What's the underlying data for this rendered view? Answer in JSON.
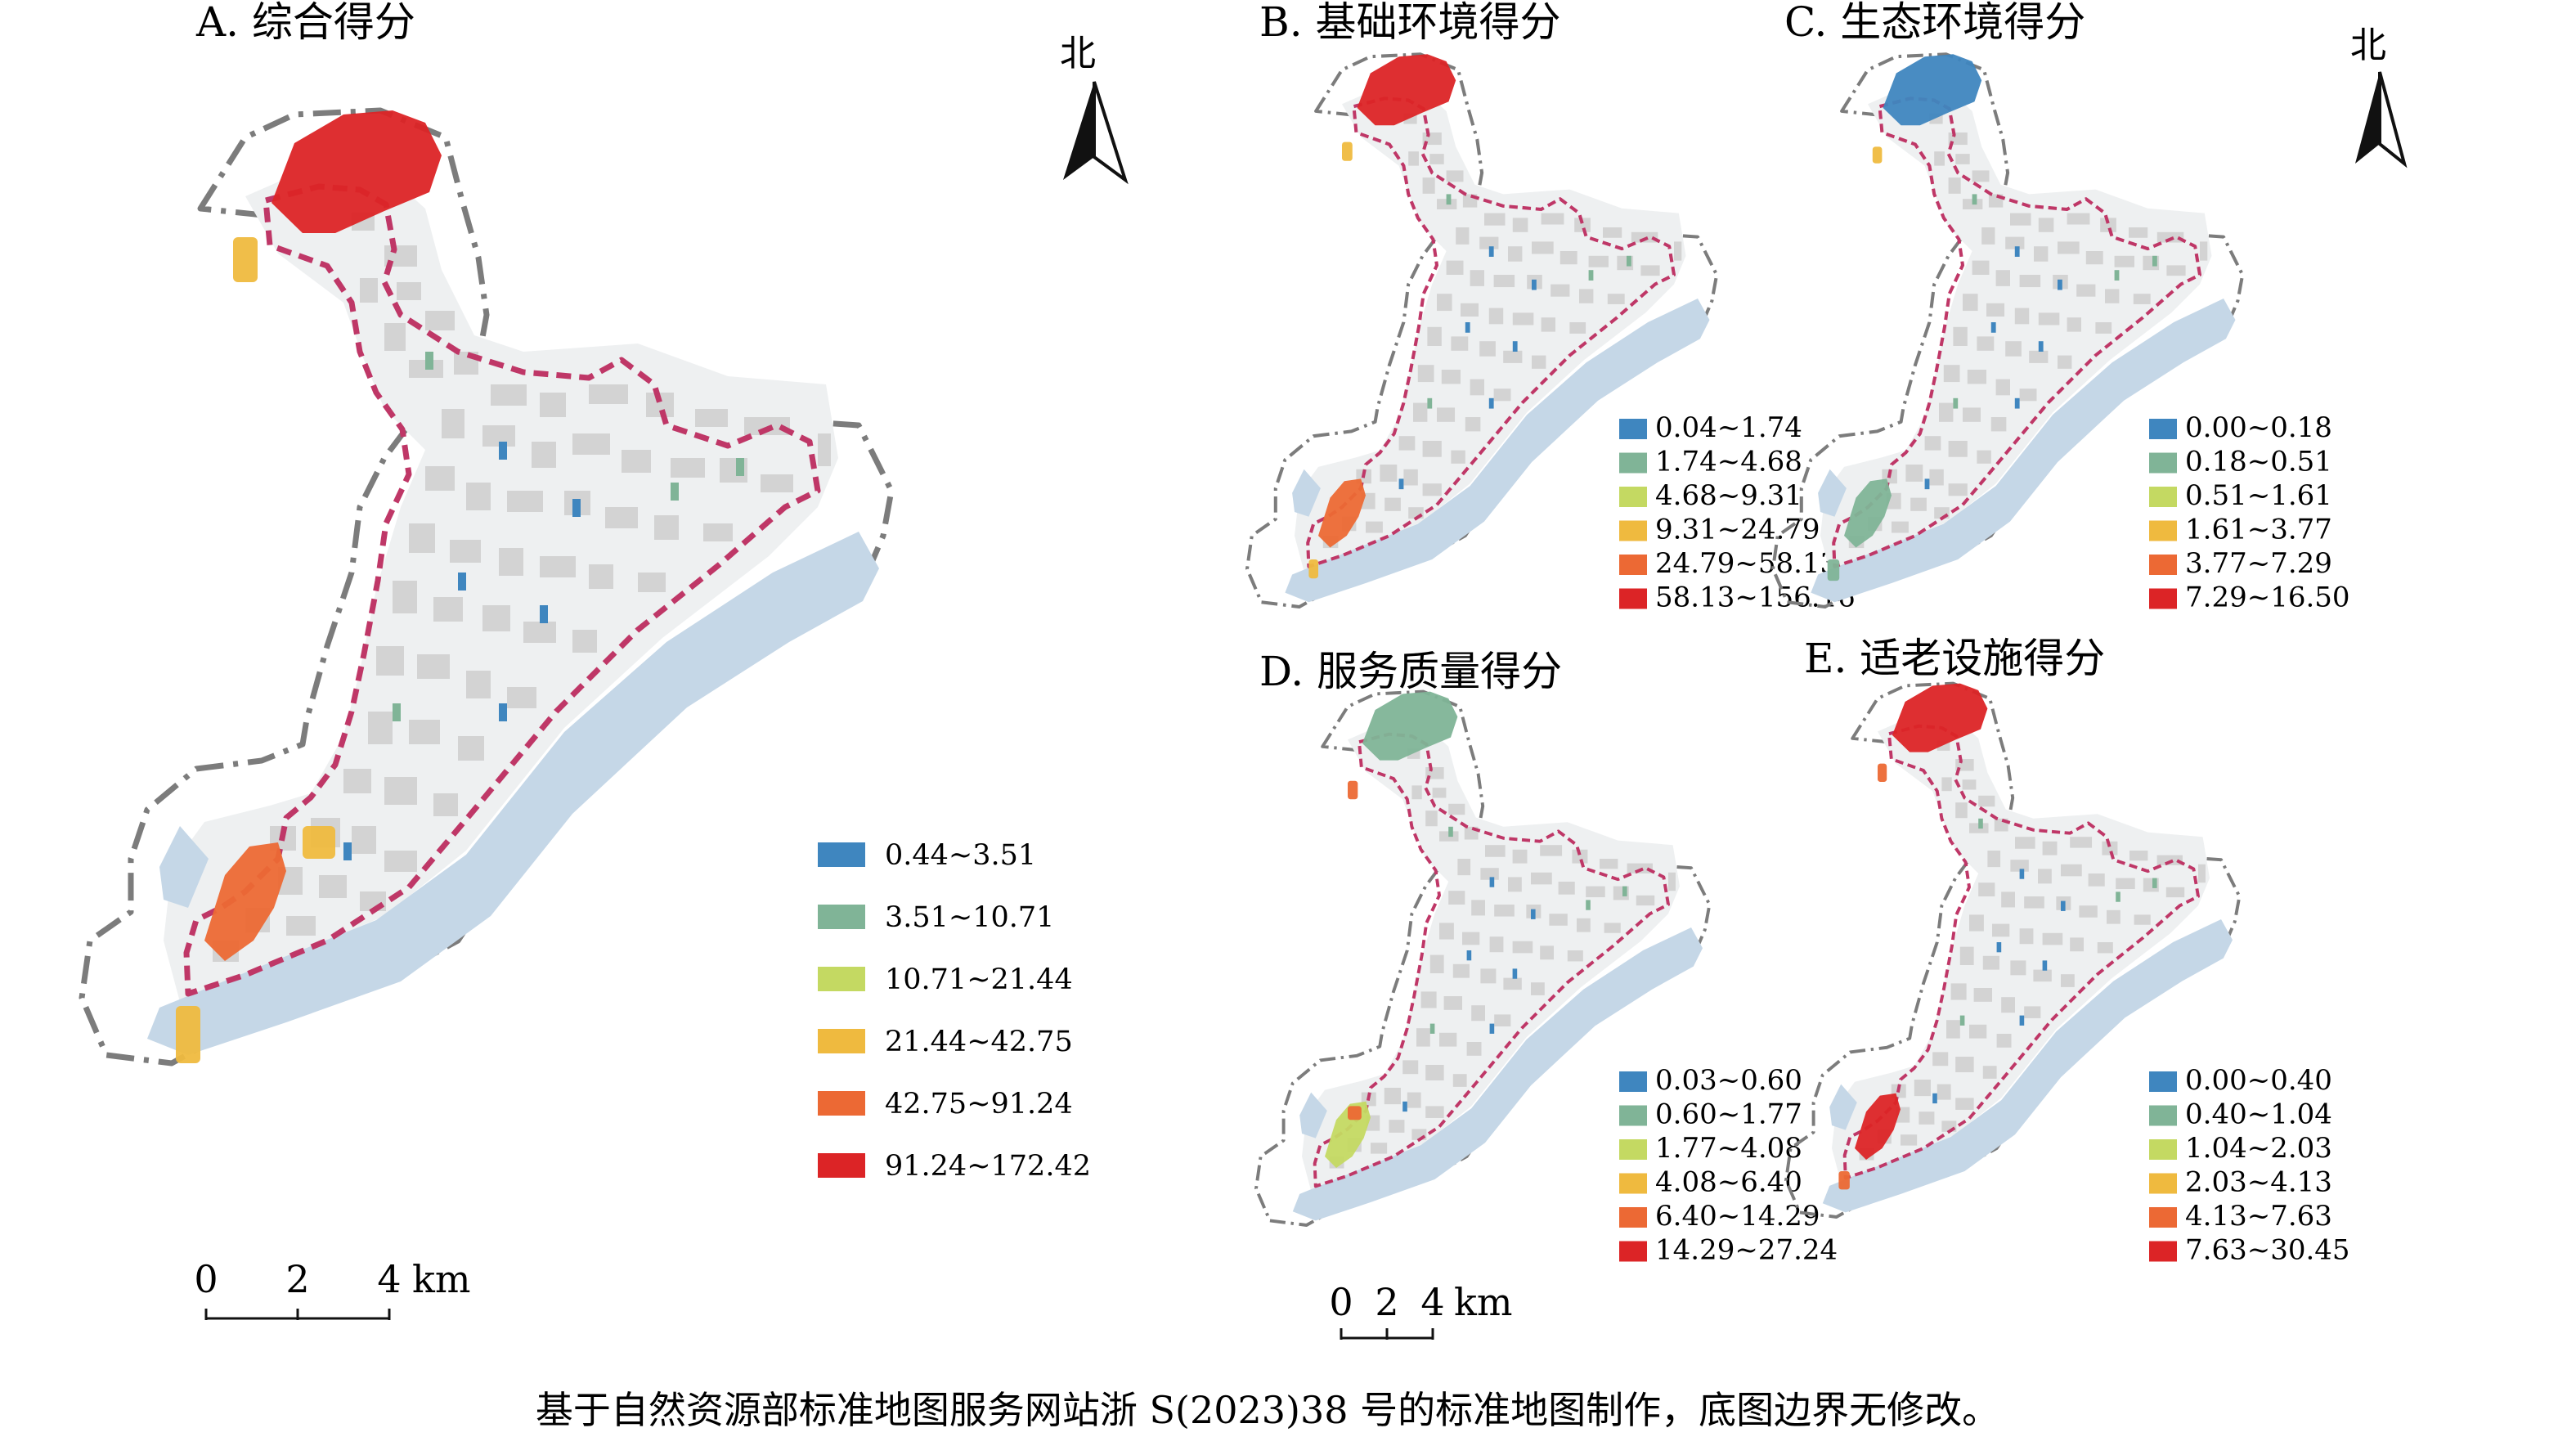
{
  "colors": {
    "c1": "#3f86bf",
    "c2": "#80b497",
    "c3": "#c4d962",
    "c4": "#efba3f",
    "c5": "#ec6934",
    "c6": "#dc2426",
    "river": "#c5d7e7",
    "block": "#d3d3d3",
    "boundary_dash": "#bf3767",
    "buffer_dash": "#7c7c7c"
  },
  "north_label": "北",
  "panels": [
    {
      "id": "A",
      "title": "A. 综合得分",
      "legend": [
        "0.44~3.51",
        "3.51~10.71",
        "10.71~21.44",
        "21.44~42.75",
        "42.75~91.24",
        "91.24~172.42"
      ],
      "north": true,
      "scale": {
        "ticks": [
          "0",
          "2",
          "4"
        ],
        "unit": "km"
      }
    },
    {
      "id": "B",
      "title": "B. 基础环境得分",
      "legend": [
        "0.04~1.74",
        "1.74~4.68",
        "4.68~9.31",
        "9.31~24.79",
        "24.79~58.13",
        "58.13~156.16"
      ],
      "north": false
    },
    {
      "id": "C",
      "title": "C. 生态环境得分",
      "legend": [
        "0.00~0.18",
        "0.18~0.51",
        "0.51~1.61",
        "1.61~3.77",
        "3.77~7.29",
        "7.29~16.50"
      ],
      "north": true
    },
    {
      "id": "D",
      "title": "D. 服务质量得分",
      "legend": [
        "0.03~0.60",
        "0.60~1.77",
        "1.77~4.08",
        "4.08~6.40",
        "6.40~14.29",
        "14.29~27.24"
      ],
      "north": false,
      "scale": {
        "ticks": [
          "0",
          "2",
          "4"
        ],
        "unit": "km"
      }
    },
    {
      "id": "E",
      "title": "E. 适老设施得分",
      "legend": [
        "0.00~0.40",
        "0.40~1.04",
        "1.04~2.03",
        "2.03~4.13",
        "4.13~7.63",
        "7.63~30.45"
      ],
      "north": false
    }
  ],
  "caption": "基于自然资源部标准地图服务网站浙 S(2023)38 号的标准地图制作，底图边界无修改。"
}
